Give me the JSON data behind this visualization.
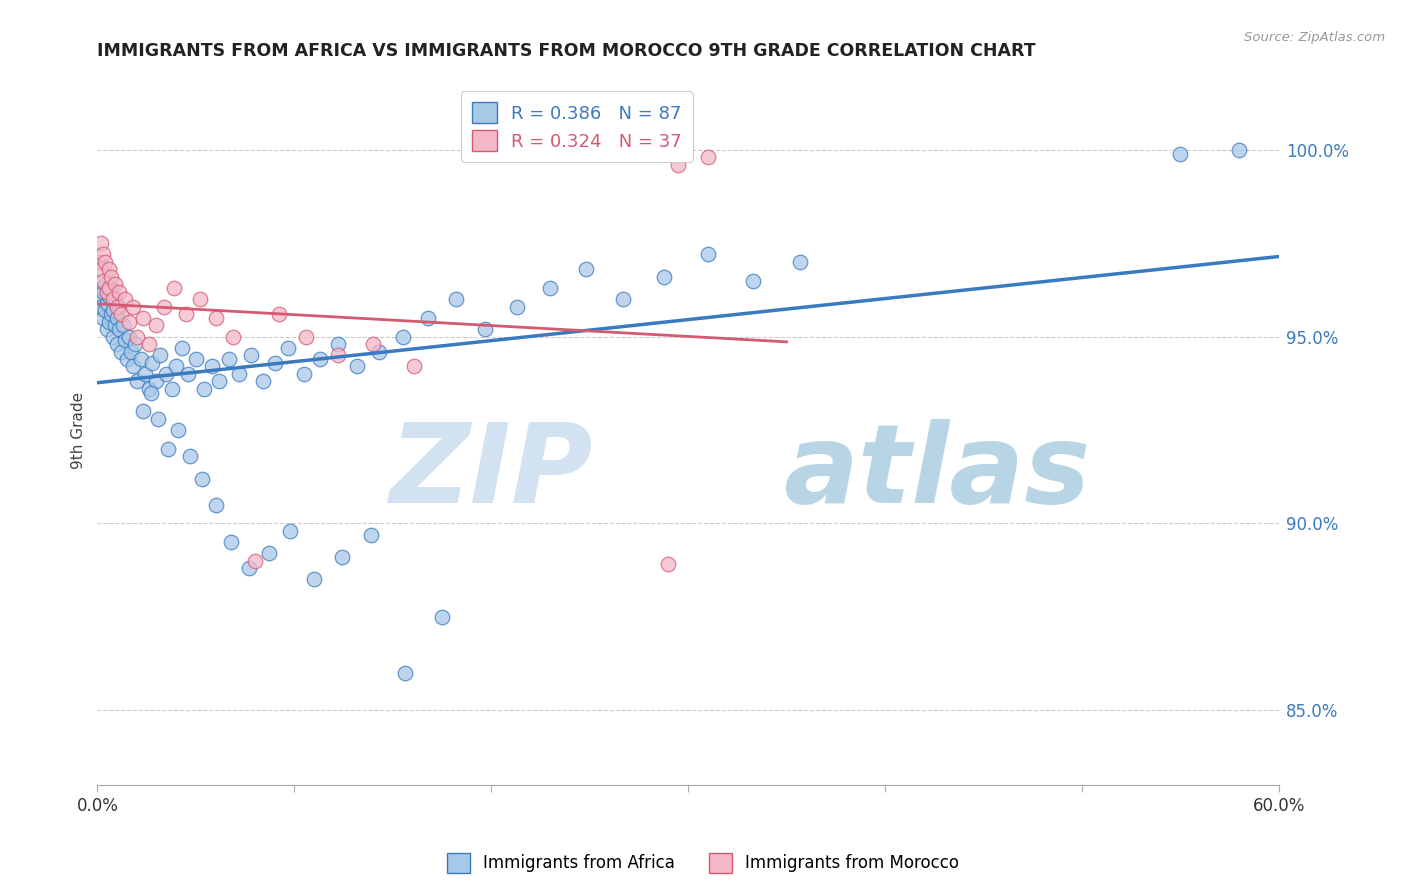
{
  "title": "IMMIGRANTS FROM AFRICA VS IMMIGRANTS FROM MOROCCO 9TH GRADE CORRELATION CHART",
  "source": "Source: ZipAtlas.com",
  "ylabel": "9th Grade",
  "xlim": [
    0.0,
    0.6
  ],
  "ylim": [
    0.83,
    1.02
  ],
  "yticks": [
    0.85,
    0.9,
    0.95,
    1.0
  ],
  "ytick_labels": [
    "85.0%",
    "90.0%",
    "95.0%",
    "100.0%"
  ],
  "xticks": [
    0.0,
    0.1,
    0.2,
    0.3,
    0.4,
    0.5,
    0.6
  ],
  "xtick_labels": [
    "0.0%",
    "",
    "",
    "",
    "",
    "",
    "60.0%"
  ],
  "blue_color": "#a8c8e8",
  "pink_color": "#f4b8c8",
  "blue_line_color": "#3a7abf",
  "pink_line_color": "#d45a72",
  "R_blue": 0.386,
  "N_blue": 87,
  "R_pink": 0.324,
  "N_pink": 37,
  "legend_label_blue": "Immigrants from Africa",
  "legend_label_pink": "Immigrants from Morocco",
  "watermark_zip": "ZIP",
  "watermark_atlas": "atlas",
  "blue_x": [
    0.001,
    0.002,
    0.002,
    0.003,
    0.003,
    0.004,
    0.004,
    0.005,
    0.005,
    0.006,
    0.006,
    0.007,
    0.007,
    0.008,
    0.008,
    0.009,
    0.009,
    0.01,
    0.01,
    0.011,
    0.011,
    0.012,
    0.013,
    0.014,
    0.015,
    0.016,
    0.017,
    0.018,
    0.019,
    0.02,
    0.022,
    0.024,
    0.026,
    0.028,
    0.03,
    0.032,
    0.035,
    0.038,
    0.04,
    0.043,
    0.046,
    0.05,
    0.054,
    0.058,
    0.062,
    0.067,
    0.072,
    0.078,
    0.084,
    0.09,
    0.097,
    0.105,
    0.113,
    0.122,
    0.132,
    0.143,
    0.155,
    0.168,
    0.182,
    0.197,
    0.213,
    0.23,
    0.248,
    0.267,
    0.288,
    0.31,
    0.333,
    0.357,
    0.023,
    0.027,
    0.031,
    0.036,
    0.041,
    0.047,
    0.053,
    0.06,
    0.068,
    0.077,
    0.087,
    0.098,
    0.11,
    0.124,
    0.139,
    0.156,
    0.175,
    0.55,
    0.58
  ],
  "blue_y": [
    0.96,
    0.958,
    0.963,
    0.955,
    0.962,
    0.957,
    0.964,
    0.952,
    0.959,
    0.954,
    0.961,
    0.956,
    0.963,
    0.95,
    0.957,
    0.953,
    0.96,
    0.948,
    0.955,
    0.952,
    0.958,
    0.946,
    0.953,
    0.949,
    0.944,
    0.95,
    0.946,
    0.942,
    0.948,
    0.938,
    0.944,
    0.94,
    0.936,
    0.943,
    0.938,
    0.945,
    0.94,
    0.936,
    0.942,
    0.947,
    0.94,
    0.944,
    0.936,
    0.942,
    0.938,
    0.944,
    0.94,
    0.945,
    0.938,
    0.943,
    0.947,
    0.94,
    0.944,
    0.948,
    0.942,
    0.946,
    0.95,
    0.955,
    0.96,
    0.952,
    0.958,
    0.963,
    0.968,
    0.96,
    0.966,
    0.972,
    0.965,
    0.97,
    0.93,
    0.935,
    0.928,
    0.92,
    0.925,
    0.918,
    0.912,
    0.905,
    0.895,
    0.888,
    0.892,
    0.898,
    0.885,
    0.891,
    0.897,
    0.86,
    0.875,
    0.999,
    1.0
  ],
  "pink_x": [
    0.001,
    0.002,
    0.002,
    0.003,
    0.003,
    0.004,
    0.005,
    0.006,
    0.006,
    0.007,
    0.008,
    0.009,
    0.01,
    0.011,
    0.012,
    0.014,
    0.016,
    0.018,
    0.02,
    0.023,
    0.026,
    0.03,
    0.034,
    0.039,
    0.045,
    0.052,
    0.06,
    0.069,
    0.08,
    0.092,
    0.106,
    0.122,
    0.14,
    0.161,
    0.29,
    0.295,
    0.31
  ],
  "pink_y": [
    0.97,
    0.975,
    0.968,
    0.972,
    0.965,
    0.97,
    0.962,
    0.968,
    0.963,
    0.966,
    0.96,
    0.964,
    0.958,
    0.962,
    0.956,
    0.96,
    0.954,
    0.958,
    0.95,
    0.955,
    0.948,
    0.953,
    0.958,
    0.963,
    0.956,
    0.96,
    0.955,
    0.95,
    0.89,
    0.956,
    0.95,
    0.945,
    0.948,
    0.942,
    0.889,
    0.996,
    0.998
  ]
}
